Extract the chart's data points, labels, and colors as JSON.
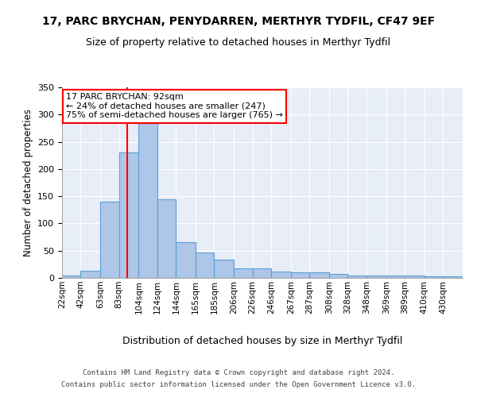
{
  "title": "17, PARC BRYCHAN, PENYDARREN, MERTHYR TYDFIL, CF47 9EF",
  "subtitle": "Size of property relative to detached houses in Merthyr Tydfil",
  "xlabel": "Distribution of detached houses by size in Merthyr Tydfil",
  "ylabel": "Number of detached properties",
  "categories": [
    "22sqm",
    "42sqm",
    "63sqm",
    "83sqm",
    "104sqm",
    "124sqm",
    "144sqm",
    "165sqm",
    "185sqm",
    "206sqm",
    "226sqm",
    "246sqm",
    "267sqm",
    "287sqm",
    "308sqm",
    "328sqm",
    "348sqm",
    "369sqm",
    "389sqm",
    "410sqm",
    "430sqm"
  ],
  "values": [
    5,
    13,
    140,
    230,
    285,
    145,
    65,
    47,
    34,
    17,
    17,
    12,
    10,
    10,
    7,
    5,
    4,
    5,
    4,
    3,
    3
  ],
  "bar_color": "#aec6e8",
  "bar_edge_color": "#5a9fd4",
  "annotation_line1": "17 PARC BRYCHAN: 92sqm",
  "annotation_line2": "← 24% of detached houses are smaller (247)",
  "annotation_line3": "75% of semi-detached houses are larger (765) →",
  "vline_x": 92,
  "bin_edges": [
    22,
    42,
    63,
    83,
    104,
    124,
    144,
    165,
    185,
    206,
    226,
    246,
    267,
    287,
    308,
    328,
    348,
    369,
    389,
    410,
    430,
    451
  ],
  "ylim": [
    0,
    350
  ],
  "yticks": [
    0,
    50,
    100,
    150,
    200,
    250,
    300,
    350
  ],
  "background_color": "#e8eef7",
  "footer_line1": "Contains HM Land Registry data © Crown copyright and database right 2024.",
  "footer_line2": "Contains public sector information licensed under the Open Government Licence v3.0.",
  "annotation_box_color": "white",
  "annotation_box_edge": "red",
  "vline_color": "red",
  "title_fontsize": 10,
  "subtitle_fontsize": 9
}
